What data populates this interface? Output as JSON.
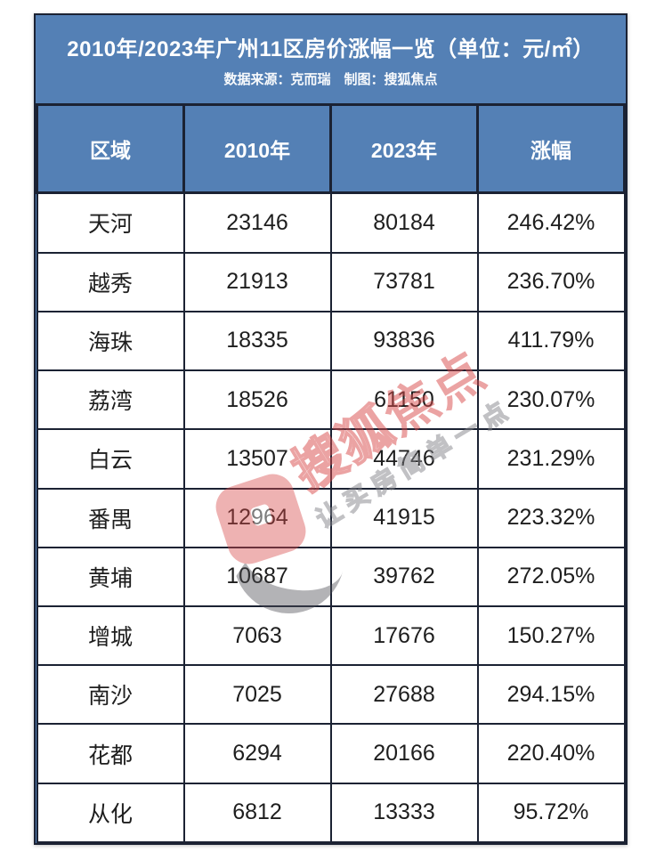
{
  "title": {
    "main": "2010年/2023年广州11区房价涨幅一览（单位：元/㎡）",
    "subtitle": "数据来源：克而瑞　制图：搜狐焦点"
  },
  "chart_data": {
    "type": "table",
    "title": "2010年/2023年广州11区房价涨幅一览",
    "unit": "元/㎡",
    "source": "克而瑞",
    "creator": "搜狐焦点",
    "columns": [
      "区域",
      "2010年",
      "2023年",
      "涨幅"
    ],
    "rows": [
      {
        "district": "天河",
        "price_2010": 23146,
        "price_2023": 80184,
        "growth": "246.42%"
      },
      {
        "district": "越秀",
        "price_2010": 21913,
        "price_2023": 73781,
        "growth": "236.70%"
      },
      {
        "district": "海珠",
        "price_2010": 18335,
        "price_2023": 93836,
        "growth": "411.79%"
      },
      {
        "district": "荔湾",
        "price_2010": 18526,
        "price_2023": 61150,
        "growth": "230.07%"
      },
      {
        "district": "白云",
        "price_2010": 13507,
        "price_2023": 44746,
        "growth": "231.29%"
      },
      {
        "district": "番禺",
        "price_2010": 12964,
        "price_2023": 41915,
        "growth": "223.32%"
      },
      {
        "district": "黄埔",
        "price_2010": 10687,
        "price_2023": 39762,
        "growth": "272.05%"
      },
      {
        "district": "增城",
        "price_2010": 7063,
        "price_2023": 17676,
        "growth": "150.27%"
      },
      {
        "district": "南沙",
        "price_2010": 7025,
        "price_2023": 27688,
        "growth": "294.15%"
      },
      {
        "district": "花都",
        "price_2010": 6294,
        "price_2023": 20166,
        "growth": "220.40%"
      },
      {
        "district": "从化",
        "price_2010": 6812,
        "price_2023": 13333,
        "growth": "95.72%"
      }
    ]
  },
  "watermark": {
    "brand_outline": "搜狐",
    "brand_solid": "焦点",
    "slogan": "让买房简单一点"
  },
  "colors": {
    "band_blue": "#5480B5",
    "border_dark": "#1B2233",
    "watermark_red": "#D94A4A"
  }
}
